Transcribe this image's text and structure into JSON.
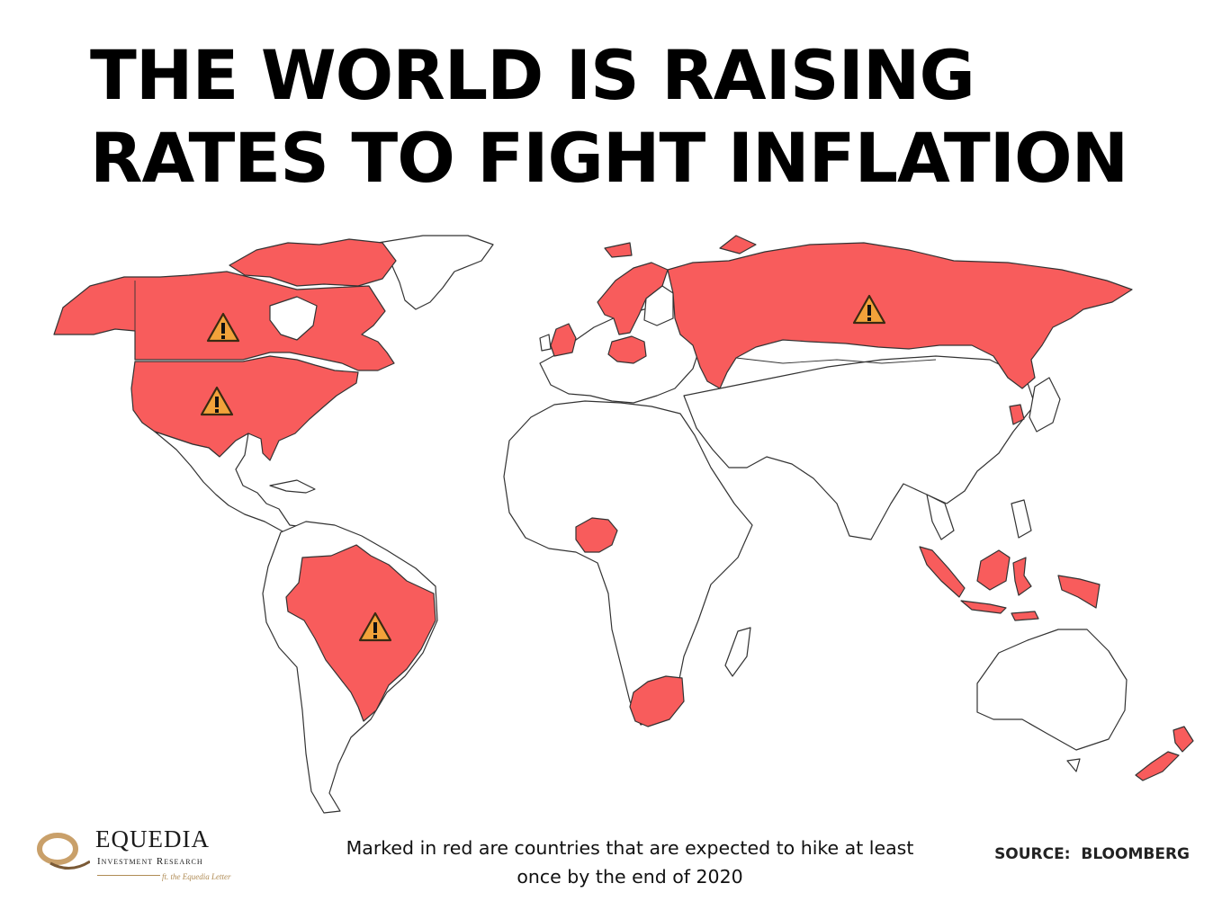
{
  "title": "THE WORLD IS RAISING RATES TO FIGHT INFLATION",
  "caption": "Marked in red are countries that are expected to hike at least once by the end of 2020",
  "source": "SOURCE:  BLOOMBERG",
  "logo": {
    "name": "EQUEDIA",
    "subtitle": "Investment Research",
    "tagline": "ft. the Equedia Letter"
  },
  "map": {
    "type": "choropleth",
    "highlight_color": "#f85c5c",
    "base_color": "#ffffff",
    "highlight_meaning": "expected to hike at least once by the end of 2020",
    "highlighted_countries": [
      "Canada",
      "United States",
      "Brazil",
      "United Kingdom",
      "Norway",
      "Sweden",
      "Poland",
      "Russia",
      "South Korea",
      "Nigeria",
      "South Africa",
      "Indonesia",
      "New Zealand"
    ],
    "warning_markers": [
      "Canada",
      "United States",
      "Brazil",
      "Russia"
    ],
    "warning_icon": "warning-triangle-icon"
  }
}
